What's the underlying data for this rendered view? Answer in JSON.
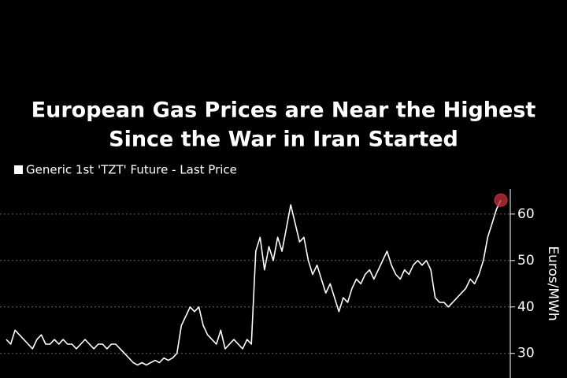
{
  "chart_data": {
    "type": "line",
    "title": [
      "European Gas Prices are Near the Highest",
      "Since the War in Iran Started"
    ],
    "y_label": "Euros/MWh",
    "series": [
      {
        "name": "Generic 1st 'TZT' Future - Last Price",
        "color": "#ffffff",
        "values": [
          33,
          32,
          35,
          34,
          33,
          32,
          31,
          33,
          34,
          32,
          32,
          33,
          32,
          33,
          32,
          32,
          31,
          32,
          33,
          32,
          31,
          32,
          32,
          31,
          32,
          32,
          31,
          30,
          29,
          28,
          27.5,
          28,
          27.5,
          28,
          28.5,
          28,
          29,
          28.5,
          29,
          30,
          36,
          38,
          40,
          39,
          40,
          36,
          34,
          33,
          32,
          35,
          31,
          32,
          33,
          32,
          31,
          33,
          32,
          52,
          55,
          48,
          53,
          50,
          55,
          52,
          57,
          62,
          58,
          54,
          55,
          50,
          47,
          49,
          46,
          43,
          45,
          42,
          39,
          42,
          41,
          44,
          46,
          45,
          47,
          48,
          46,
          48,
          50,
          52,
          49,
          47,
          46,
          48,
          47,
          49,
          50,
          49,
          50,
          48,
          42,
          41,
          41,
          40,
          41,
          42,
          43,
          44,
          46,
          45,
          47,
          50,
          55,
          58,
          61,
          63
        ]
      }
    ],
    "last_marker_color": "#c8303c",
    "ylim": [
      24.7,
      65.4
    ],
    "yticks": [
      30,
      40,
      50,
      60
    ],
    "grid": true
  }
}
